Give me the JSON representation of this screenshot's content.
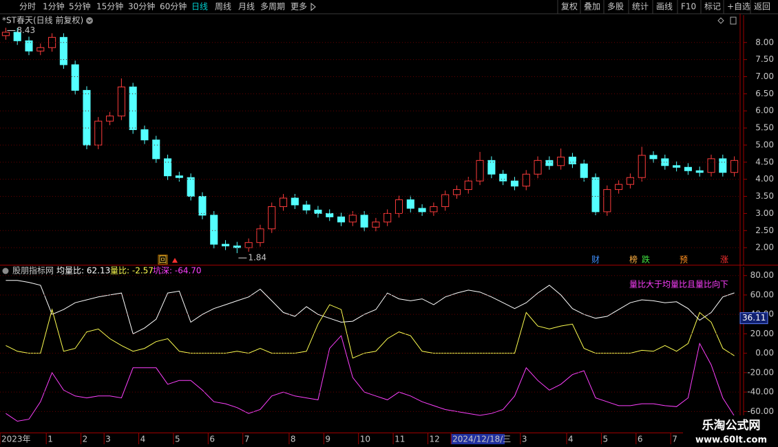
{
  "toolbar": {
    "periods": [
      "分时",
      "1分钟",
      "5分钟",
      "15分钟",
      "30分钟",
      "60分钟",
      "日线",
      "周线",
      "月线",
      "多周期",
      "更多"
    ],
    "active_period": 6,
    "buttons": [
      "复权",
      "叠加",
      "多股",
      "统计",
      "画线",
      "F10",
      "标记",
      "+自选",
      "返回"
    ]
  },
  "events": [
    "回",
    "财",
    "榜",
    "跌",
    "预",
    "涨"
  ],
  "watermark": {
    "title": "乐淘公式网",
    "url": "www.60lt.com"
  },
  "chart_data": [
    {
      "type": "candlestick",
      "title": "*ST春天(日线 前复权)",
      "open": [
        8.2,
        8.3,
        8.05,
        7.75,
        7.85,
        8.15,
        7.35,
        6.6,
        5.0,
        5.7,
        5.85,
        6.7,
        5.45,
        5.15,
        4.6,
        4.1,
        4.05,
        3.5,
        2.95,
        2.1,
        2.05,
        2.0,
        2.15,
        2.55,
        3.2,
        3.45,
        3.25,
        3.1,
        3.0,
        2.9,
        2.75,
        2.95,
        2.6,
        2.75,
        3.0,
        3.4,
        3.15,
        3.05,
        3.2,
        3.55,
        3.7,
        3.95,
        4.55,
        4.15,
        3.95,
        3.8,
        4.15,
        4.55,
        4.4,
        4.65,
        4.45,
        4.05,
        3.05,
        3.7,
        3.85,
        4.05,
        4.7,
        4.6,
        4.4,
        4.35,
        4.25,
        4.2,
        4.6,
        4.2
      ],
      "high": [
        8.43,
        8.42,
        8.17,
        7.97,
        8.27,
        8.27,
        7.47,
        6.72,
        5.82,
        5.97,
        6.95,
        6.82,
        5.57,
        5.27,
        4.72,
        4.22,
        4.17,
        3.62,
        3.07,
        2.22,
        2.17,
        2.27,
        2.67,
        3.32,
        3.57,
        3.57,
        3.37,
        3.22,
        3.12,
        3.02,
        3.07,
        3.07,
        2.87,
        3.12,
        3.52,
        3.52,
        3.27,
        3.32,
        3.67,
        3.82,
        4.07,
        4.8,
        4.67,
        4.27,
        4.07,
        4.27,
        4.67,
        4.67,
        4.9,
        4.77,
        4.57,
        4.17,
        3.82,
        3.97,
        4.17,
        4.95,
        4.82,
        4.72,
        4.52,
        4.47,
        4.37,
        4.72,
        4.72,
        4.67
      ],
      "low": [
        8.08,
        7.93,
        7.63,
        7.63,
        7.73,
        7.23,
        6.48,
        4.88,
        4.88,
        5.58,
        5.73,
        5.33,
        5.03,
        4.48,
        3.98,
        3.93,
        3.38,
        2.83,
        1.98,
        1.93,
        1.84,
        1.88,
        2.03,
        2.43,
        3.08,
        3.13,
        2.98,
        2.88,
        2.78,
        2.63,
        2.63,
        2.48,
        2.48,
        2.63,
        2.88,
        3.03,
        2.93,
        2.93,
        3.08,
        3.43,
        3.58,
        3.83,
        4.03,
        3.83,
        3.68,
        3.68,
        4.03,
        4.28,
        4.28,
        4.33,
        3.93,
        2.95,
        2.93,
        3.58,
        3.73,
        3.93,
        4.48,
        4.28,
        4.23,
        4.13,
        4.08,
        4.08,
        4.08,
        4.08
      ],
      "close": [
        8.3,
        8.05,
        7.75,
        7.85,
        8.15,
        7.35,
        6.6,
        5.0,
        5.7,
        5.85,
        6.7,
        5.45,
        5.15,
        4.6,
        4.1,
        4.05,
        3.5,
        2.95,
        2.1,
        2.05,
        2.0,
        2.15,
        2.55,
        3.2,
        3.45,
        3.25,
        3.1,
        3.0,
        2.9,
        2.75,
        2.95,
        2.6,
        2.75,
        3.0,
        3.4,
        3.15,
        3.05,
        3.2,
        3.55,
        3.7,
        3.95,
        4.55,
        4.15,
        3.95,
        3.8,
        4.15,
        4.55,
        4.4,
        4.65,
        4.45,
        4.05,
        3.05,
        3.7,
        3.85,
        4.05,
        4.7,
        4.6,
        4.4,
        4.35,
        4.25,
        4.2,
        4.6,
        4.2,
        4.55
      ],
      "up_color": "#ff3c3c",
      "down_color": "#54ffff",
      "grid": true,
      "ylim": [
        1.5,
        8.8
      ],
      "yticks": [
        {
          "value": 2,
          "label": "2.00"
        },
        {
          "value": 2.5,
          "label": "2.50"
        },
        {
          "value": 3,
          "label": "3.00"
        },
        {
          "value": 3.5,
          "label": "3.50"
        },
        {
          "value": 4,
          "label": "4.00"
        },
        {
          "value": 4.5,
          "label": "4.50"
        },
        {
          "value": 5,
          "label": "5.00"
        },
        {
          "value": 5.5,
          "label": "5.50"
        },
        {
          "value": 6,
          "label": "6.00"
        },
        {
          "value": 6.5,
          "label": "6.50"
        },
        {
          "value": 7,
          "label": "7.00"
        },
        {
          "value": 7.5,
          "label": "7.50"
        },
        {
          "value": 8,
          "label": "8.00"
        }
      ]
    },
    {
      "type": "line",
      "title": "股朋指标网",
      "categories": [
        "2023年",
        null,
        null,
        null,
        "1",
        null,
        null,
        "2",
        null,
        "3",
        null,
        null,
        "4",
        null,
        null,
        "5",
        null,
        null,
        "6",
        null,
        null,
        "7",
        null,
        null,
        null,
        "8",
        null,
        null,
        "9",
        null,
        null,
        "10",
        null,
        null,
        "11",
        null,
        null,
        "12",
        null,
        "2024/12/18/三",
        null,
        null,
        null,
        null,
        null,
        "3",
        null,
        null,
        null,
        "4",
        null,
        null,
        "5",
        null,
        null,
        "6",
        null,
        null,
        "7",
        null,
        null,
        null,
        null,
        null
      ],
      "cursor_index": 39,
      "cursor_value": 36.11,
      "series": [
        {
          "name": "均量比: 62.13",
          "color": "#ffffff",
          "values": [
            75,
            75,
            73,
            70,
            40,
            45,
            52,
            55,
            58,
            60,
            62,
            20,
            26,
            35,
            62,
            64,
            32,
            40,
            46,
            50,
            54,
            58,
            66,
            54,
            42,
            38,
            48,
            40,
            36,
            32,
            33,
            40,
            45,
            62,
            56,
            54,
            56,
            50,
            58,
            62,
            65,
            63,
            58,
            52,
            46,
            52,
            62,
            70,
            60,
            46,
            40,
            36,
            38,
            45,
            52,
            55,
            54,
            52,
            53,
            46,
            34,
            42,
            58,
            62.13
          ]
        },
        {
          "name": "量比: -2.57",
          "color": "#ffff50",
          "values": [
            8,
            2,
            0,
            0,
            45,
            2,
            5,
            22,
            25,
            15,
            8,
            2,
            5,
            12,
            15,
            2,
            0,
            0,
            0,
            0,
            2,
            0,
            5,
            0,
            0,
            0,
            2,
            30,
            50,
            45,
            -5,
            0,
            2,
            15,
            22,
            18,
            2,
            0,
            0,
            0,
            0,
            0,
            0,
            0,
            0,
            42,
            28,
            25,
            28,
            30,
            5,
            0,
            0,
            0,
            0,
            3,
            2,
            8,
            2,
            10,
            42,
            32,
            5,
            -2.57
          ]
        },
        {
          "name": "坑深: -64.70",
          "color": "#ff40ff",
          "values": [
            -62,
            -70,
            -68,
            -50,
            -20,
            -38,
            -44,
            -46,
            -44,
            -44,
            -46,
            -15,
            -15,
            -15,
            -32,
            -28,
            -28,
            -38,
            -50,
            -52,
            -56,
            -62,
            -58,
            -44,
            -40,
            -44,
            -46,
            -48,
            5,
            18,
            -25,
            -40,
            -44,
            -48,
            -40,
            -44,
            -50,
            -54,
            -58,
            -60,
            -62,
            -64,
            -62,
            -58,
            -44,
            -15,
            -28,
            -38,
            -32,
            -22,
            -18,
            -46,
            -50,
            -54,
            -54,
            -52,
            -52,
            -54,
            -55,
            -46,
            10,
            -12,
            -46,
            -64.7
          ]
        }
      ],
      "annotation": "量比大于均量比且量比向下",
      "grid": true,
      "ylim": [
        -81,
        89
      ],
      "yticks": [
        {
          "value": -60,
          "label": "-60.00"
        },
        {
          "value": -40,
          "label": "-40.00"
        },
        {
          "value": -20,
          "label": "-20.00"
        },
        {
          "value": 0,
          "label": "0.00"
        },
        {
          "value": 20,
          "label": "20.00"
        },
        {
          "value": 40,
          "label": "40.00"
        },
        {
          "value": 60,
          "label": "60.00"
        },
        {
          "value": 80,
          "label": "80.00"
        }
      ]
    }
  ]
}
